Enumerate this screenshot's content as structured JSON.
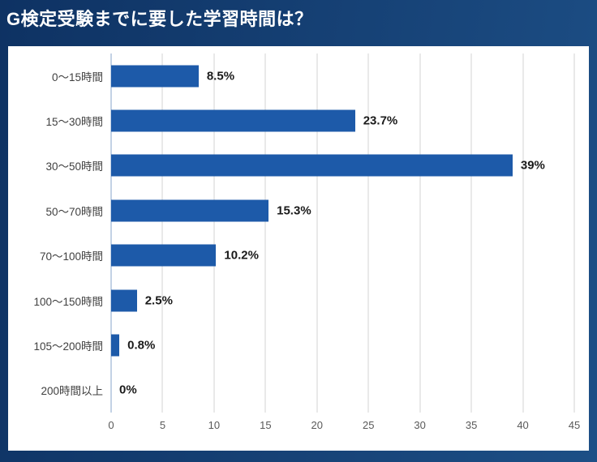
{
  "title": "G検定受験までに要した学習時間は？",
  "colors": {
    "background_left": "#0e3263",
    "background_right": "#1d4f86",
    "card": "#ffffff",
    "bar": "#1d5aa9",
    "zero_axis_line": "#c3d2e5",
    "gridline": "#e9e9e9",
    "category_label": "#3f3f3f",
    "tick_label": "#595959",
    "value_label": "#1a1a1a",
    "title_text": "#ffffff"
  },
  "chart_data": {
    "type": "bar",
    "orientation": "horizontal",
    "title": "G検定受験までに要した学習時間は？",
    "categories": [
      "0〜15時間",
      "15〜30時間",
      "30〜50時間",
      "50〜70時間",
      "70〜100時間",
      "100〜150時間",
      "105〜200時間",
      "200時間以上"
    ],
    "values": [
      8.5,
      23.7,
      39,
      15.3,
      10.2,
      2.5,
      0.8,
      0
    ],
    "value_labels": [
      "8.5%",
      "23.7%",
      "39%",
      "15.3%",
      "10.2%",
      "2.5%",
      "0.8%",
      "0%"
    ],
    "xlabel": "",
    "ylabel": "",
    "xlim": [
      0,
      45
    ],
    "x_ticks": [
      0,
      5,
      10,
      15,
      20,
      25,
      30,
      35,
      40,
      45
    ],
    "grid": true,
    "legend": false,
    "unit": "%"
  }
}
